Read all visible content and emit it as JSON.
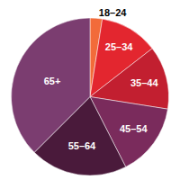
{
  "chart_data": {
    "type": "pie",
    "categories": [
      "18–24",
      "25–34",
      "35–44",
      "45–54",
      "55–64",
      "65+"
    ],
    "values": [
      2.5,
      12,
      13,
      15,
      20,
      37.5
    ],
    "colors": [
      "#f26b3a",
      "#e3262f",
      "#c21f30",
      "#7a2b5c",
      "#4a1a3b",
      "#7b3d70"
    ]
  }
}
